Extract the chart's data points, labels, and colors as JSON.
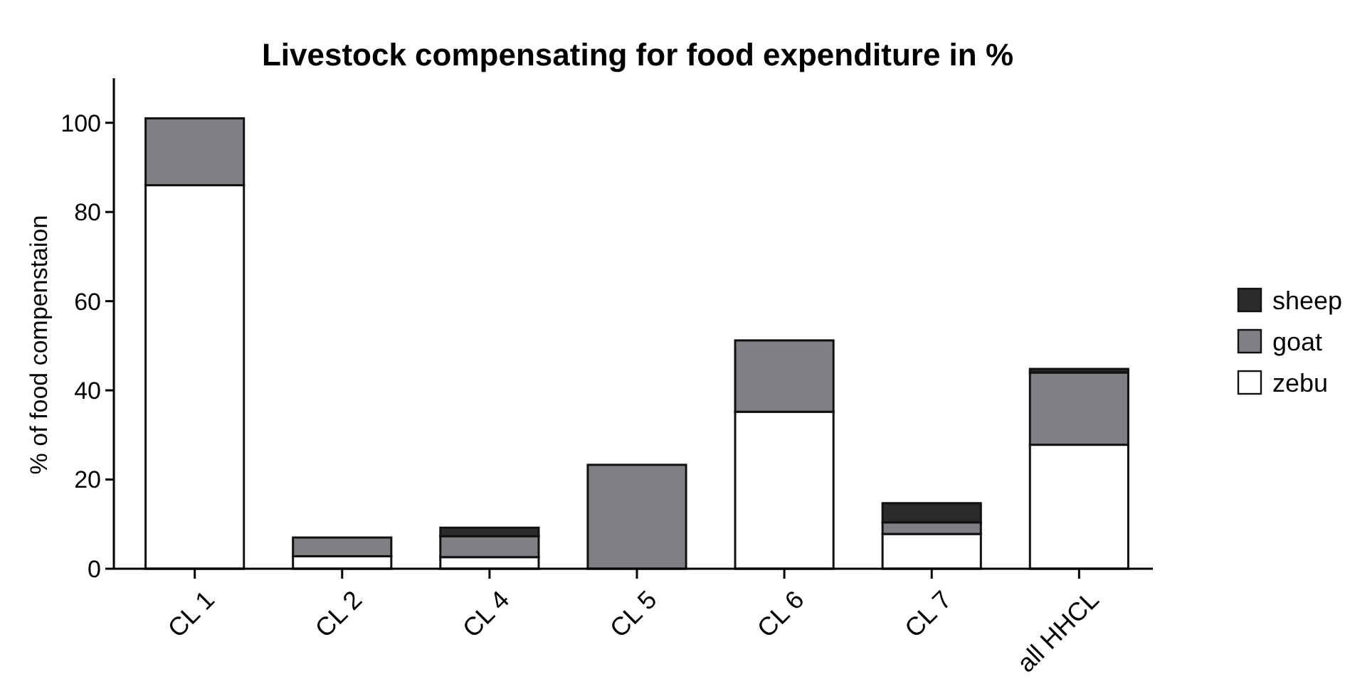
{
  "chart_data": {
    "type": "bar",
    "title": "Livestock compensating for food expenditure in %",
    "ylabel": "% of food compenstaion",
    "categories": [
      "CL 1",
      "CL 2",
      "CL 4",
      "CL 5",
      "CL 6",
      "CL 7",
      "all HHCL"
    ],
    "series": [
      {
        "name": "zebu",
        "color": "#ffffff",
        "values": [
          86,
          2.8,
          2.6,
          0,
          35.2,
          7.8,
          27.8
        ]
      },
      {
        "name": "goat",
        "color": "#808084",
        "values": [
          15,
          4.2,
          4.7,
          23.3,
          16,
          2.6,
          16.2
        ]
      },
      {
        "name": "sheep",
        "color": "#2b2b2b",
        "values": [
          0,
          0,
          1.9,
          0,
          0,
          4.3,
          0.8
        ]
      }
    ],
    "stacked": true,
    "ylim": [
      0,
      110
    ],
    "yticks": [
      0,
      20,
      40,
      60,
      80,
      100
    ],
    "grid": false,
    "legend": "right"
  }
}
